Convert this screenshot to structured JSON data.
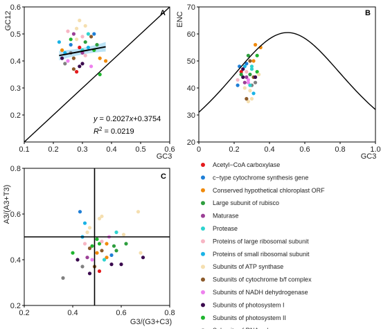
{
  "categories": [
    {
      "name": "Acetyl−CoA carboxylase",
      "color": "#e41a1c"
    },
    {
      "name": "c−type cytochrome synthesis gene",
      "color": "#1f7fd6"
    },
    {
      "name": "Conserved hypothetical chloroplast ORF",
      "color": "#f08a0c"
    },
    {
      "name": "Large subunit of rubisco",
      "color": "#2e9e3e"
    },
    {
      "name": "Maturase",
      "color": "#9b3f96"
    },
    {
      "name": "Protease",
      "color": "#2ed3cf"
    },
    {
      "name": "Proteins of large ribosomal subunit",
      "color": "#f7b6c4"
    },
    {
      "name": "Proteins of small ribosomal subunit",
      "color": "#1ab3e6"
    },
    {
      "name": "Subunits of ATP synthase",
      "color": "#f5dfb0"
    },
    {
      "name": "Subunits of cytochrome b/f complex",
      "color": "#8c5a2b"
    },
    {
      "name": "Subunits of NADH dehydrogenase",
      "color": "#ee82ee"
    },
    {
      "name": "Subunits of photosystem I",
      "color": "#3b0a4e"
    },
    {
      "name": "Subunits of photosystem II",
      "color": "#1fb52f"
    },
    {
      "name": "Subunits of RNA polymerase",
      "color": "#808080"
    }
  ],
  "chart_data": [
    {
      "panel": "A",
      "type": "scatter",
      "xlabel": "GC3",
      "ylabel": "GC12",
      "xlim": [
        0.1,
        0.6
      ],
      "ylim": [
        0.1,
        0.6
      ],
      "xticks": [
        "0.1",
        "0.2",
        "0.3",
        "0.4",
        "0.5",
        "0.6"
      ],
      "yticks": [
        "0.2",
        "0.3",
        "0.4",
        "0.5",
        "0.6"
      ],
      "regression": {
        "slope": 0.2027,
        "intercept": 0.3754,
        "x_range": [
          0.22,
          0.38
        ]
      },
      "equation_label": {
        "y": "y",
        "rhs": " = 0.2027",
        "x": "x",
        "tail": "+0.3754"
      },
      "r2_label": {
        "r": "R",
        "sup": "2",
        "val": " = 0.0219"
      },
      "diagonal": "y = x",
      "points": [
        [
          0.26,
          0.46,
          1
        ],
        [
          0.29,
          0.45,
          0
        ],
        [
          0.31,
          0.47,
          3
        ],
        [
          0.27,
          0.5,
          4
        ],
        [
          0.3,
          0.44,
          5
        ],
        [
          0.24,
          0.43,
          7
        ],
        [
          0.28,
          0.52,
          8
        ],
        [
          0.33,
          0.49,
          9
        ],
        [
          0.25,
          0.4,
          10
        ],
        [
          0.3,
          0.39,
          11
        ],
        [
          0.34,
          0.44,
          12
        ],
        [
          0.26,
          0.43,
          13
        ],
        [
          0.23,
          0.44,
          2
        ],
        [
          0.31,
          0.42,
          6
        ],
        [
          0.28,
          0.48,
          8
        ],
        [
          0.36,
          0.41,
          2
        ],
        [
          0.22,
          0.47,
          7
        ],
        [
          0.32,
          0.5,
          5
        ],
        [
          0.27,
          0.41,
          9
        ],
        [
          0.29,
          0.38,
          11
        ],
        [
          0.35,
          0.46,
          3
        ],
        [
          0.25,
          0.51,
          6
        ],
        [
          0.3,
          0.43,
          4
        ],
        [
          0.33,
          0.38,
          10
        ],
        [
          0.24,
          0.39,
          13
        ],
        [
          0.38,
          0.4,
          2
        ],
        [
          0.28,
          0.36,
          0
        ],
        [
          0.31,
          0.53,
          8
        ],
        [
          0.26,
          0.48,
          12
        ],
        [
          0.34,
          0.5,
          1
        ],
        [
          0.29,
          0.55,
          8
        ],
        [
          0.23,
          0.41,
          11
        ],
        [
          0.36,
          0.35,
          12
        ],
        [
          0.27,
          0.37,
          9
        ],
        [
          0.32,
          0.45,
          7
        ],
        [
          0.3,
          0.49,
          6
        ]
      ]
    },
    {
      "panel": "B",
      "type": "scatter",
      "xlabel": "GC3",
      "ylabel": "ENC",
      "xlim": [
        0.0,
        1.0
      ],
      "ylim": [
        20,
        70
      ],
      "xticks": [
        "0",
        "0.2",
        "0.4",
        "0.6",
        "0.8",
        "1.0"
      ],
      "yticks": [
        "20",
        "30",
        "40",
        "50",
        "60",
        "70"
      ],
      "expected_curve": "ENC = 2 + GC3 + 29/(GC3^2 + (1-GC3)^2)",
      "points": [
        [
          0.24,
          46,
          0
        ],
        [
          0.27,
          49,
          1
        ],
        [
          0.31,
          50,
          2
        ],
        [
          0.29,
          45,
          3
        ],
        [
          0.27,
          44,
          4
        ],
        [
          0.3,
          48,
          5
        ],
        [
          0.22,
          43,
          6
        ],
        [
          0.26,
          48,
          7
        ],
        [
          0.29,
          39,
          8
        ],
        [
          0.31,
          44,
          9
        ],
        [
          0.28,
          43,
          10
        ],
        [
          0.25,
          47,
          11
        ],
        [
          0.33,
          46,
          12
        ],
        [
          0.3,
          41,
          13
        ],
        [
          0.32,
          56,
          2
        ],
        [
          0.26,
          40,
          8
        ],
        [
          0.3,
          36,
          8
        ],
        [
          0.28,
          35,
          8
        ],
        [
          0.23,
          48,
          1
        ],
        [
          0.35,
          55,
          2
        ],
        [
          0.3,
          47,
          5
        ],
        [
          0.28,
          42,
          10
        ],
        [
          0.25,
          44,
          11
        ],
        [
          0.32,
          42,
          13
        ],
        [
          0.27,
          46,
          6
        ],
        [
          0.29,
          50,
          9
        ],
        [
          0.24,
          45,
          3
        ],
        [
          0.31,
          38,
          7
        ],
        [
          0.33,
          52,
          12
        ],
        [
          0.26,
          42,
          4
        ],
        [
          0.29,
          41,
          5
        ],
        [
          0.34,
          45,
          8
        ],
        [
          0.22,
          41,
          1
        ],
        [
          0.28,
          52,
          3
        ],
        [
          0.32,
          44,
          11
        ],
        [
          0.27,
          36,
          9
        ]
      ]
    },
    {
      "panel": "C",
      "type": "scatter",
      "xlabel": "G3/(G3+C3)",
      "ylabel": "A3/(A3+T3)",
      "xlim": [
        0.2,
        0.8
      ],
      "ylim": [
        0.2,
        0.8
      ],
      "xticks": [
        "0.2",
        "0.4",
        "0.6",
        "0.8"
      ],
      "yticks": [
        "0.2",
        "0.4",
        "0.6",
        "0.8"
      ],
      "reference_lines": {
        "x": 0.49,
        "y": 0.5
      },
      "points": [
        [
          0.51,
          0.35,
          0
        ],
        [
          0.43,
          0.61,
          1
        ],
        [
          0.54,
          0.47,
          2
        ],
        [
          0.58,
          0.44,
          3
        ],
        [
          0.46,
          0.41,
          4
        ],
        [
          0.58,
          0.52,
          5
        ],
        [
          0.45,
          0.47,
          6
        ],
        [
          0.45,
          0.56,
          7
        ],
        [
          0.51,
          0.58,
          8
        ],
        [
          0.52,
          0.44,
          9
        ],
        [
          0.48,
          0.4,
          10
        ],
        [
          0.6,
          0.38,
          11
        ],
        [
          0.51,
          0.47,
          12
        ],
        [
          0.36,
          0.32,
          13
        ],
        [
          0.67,
          0.61,
          8
        ],
        [
          0.52,
          0.59,
          8
        ],
        [
          0.47,
          0.54,
          8
        ],
        [
          0.46,
          0.52,
          8
        ],
        [
          0.68,
          0.43,
          8
        ],
        [
          0.61,
          0.51,
          8
        ],
        [
          0.69,
          0.41,
          11
        ],
        [
          0.42,
          0.4,
          11
        ],
        [
          0.47,
          0.34,
          11
        ],
        [
          0.56,
          0.38,
          11
        ],
        [
          0.48,
          0.46,
          12
        ],
        [
          0.5,
          0.49,
          12
        ],
        [
          0.4,
          0.43,
          12
        ],
        [
          0.57,
          0.46,
          3
        ],
        [
          0.44,
          0.37,
          13
        ],
        [
          0.54,
          0.41,
          2
        ],
        [
          0.5,
          0.43,
          2
        ],
        [
          0.47,
          0.45,
          9
        ],
        [
          0.53,
          0.4,
          5
        ],
        [
          0.55,
          0.5,
          10
        ],
        [
          0.62,
          0.47,
          3
        ],
        [
          0.49,
          0.37,
          9
        ],
        [
          0.44,
          0.5,
          7
        ],
        [
          0.56,
          0.42,
          1
        ],
        [
          0.52,
          0.48,
          6
        ]
      ]
    }
  ]
}
